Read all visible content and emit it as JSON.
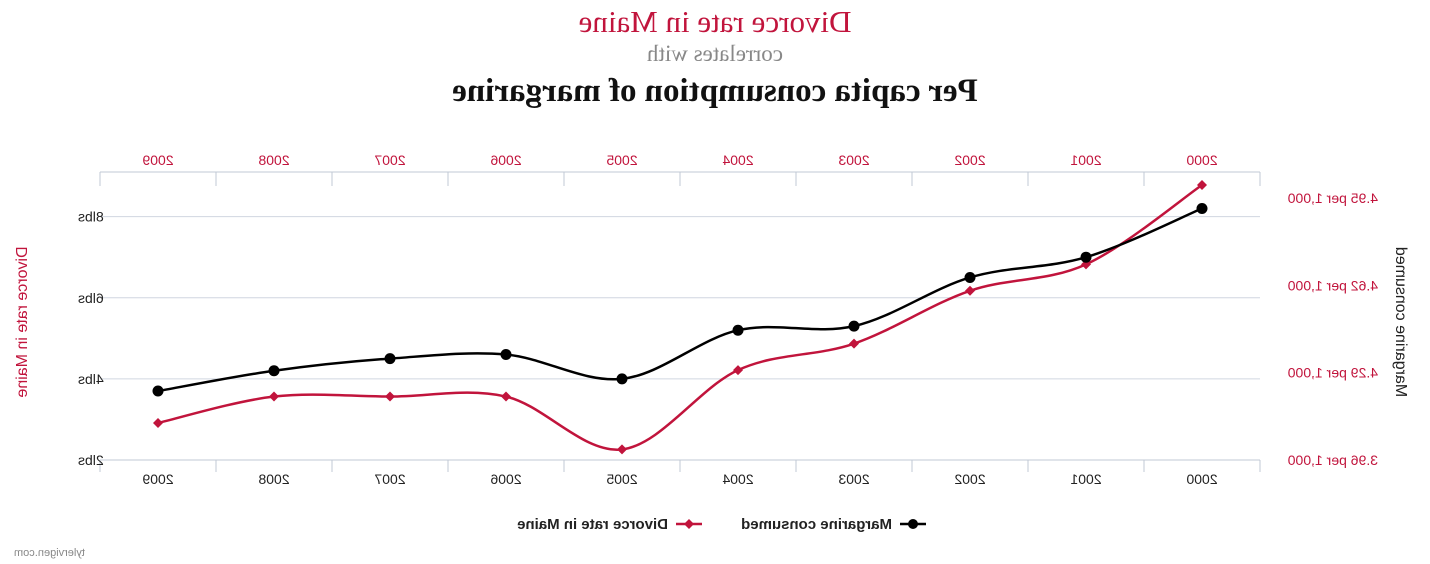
{
  "title": {
    "line1": "Divorce rate in Maine",
    "line2": "correlates with",
    "line3": "Per capita consumption of margarine"
  },
  "credit": "tylervigen.com",
  "colors": {
    "margarine": "#000000",
    "divorce": "#c1143c",
    "grid": "#d0d6e0",
    "axis": "#c0c8d4"
  },
  "chart_data": {
    "type": "line",
    "mirrored_horizontally": true,
    "categories": [
      "2000",
      "2001",
      "2002",
      "2003",
      "2004",
      "2005",
      "2006",
      "2007",
      "2008",
      "2009"
    ],
    "series": [
      {
        "name": "Margarine consumed",
        "axis": "left",
        "marker": "circle",
        "values": [
          8.2,
          7.0,
          6.5,
          5.3,
          5.2,
          4.0,
          4.6,
          4.5,
          4.2,
          3.7
        ]
      },
      {
        "name": "Divorce rate in Maine",
        "axis": "right",
        "marker": "diamond",
        "values": [
          5.0,
          4.7,
          4.6,
          4.4,
          4.3,
          4.0,
          4.2,
          4.2,
          4.2,
          4.1
        ]
      }
    ],
    "left_axis": {
      "label": "Margarine consumed",
      "ticks": [
        "2lbs",
        "4lbs",
        "6lbs",
        "8lbs"
      ],
      "tick_values": [
        2,
        4,
        6,
        8
      ],
      "range": [
        2,
        8.78
      ]
    },
    "right_axis": {
      "label": "Divorce rate in Maine",
      "ticks": [
        "3.96 per 1,000",
        "4.29 per 1,000",
        "4.62 per 1,000",
        "4.95 per 1,000"
      ],
      "tick_values": [
        3.96,
        4.29,
        4.62,
        4.95
      ],
      "range": [
        3.96,
        5.0
      ]
    },
    "x_ticks_top": true,
    "x_ticks_bottom": true,
    "grid": true,
    "legend": "bottom-center"
  }
}
